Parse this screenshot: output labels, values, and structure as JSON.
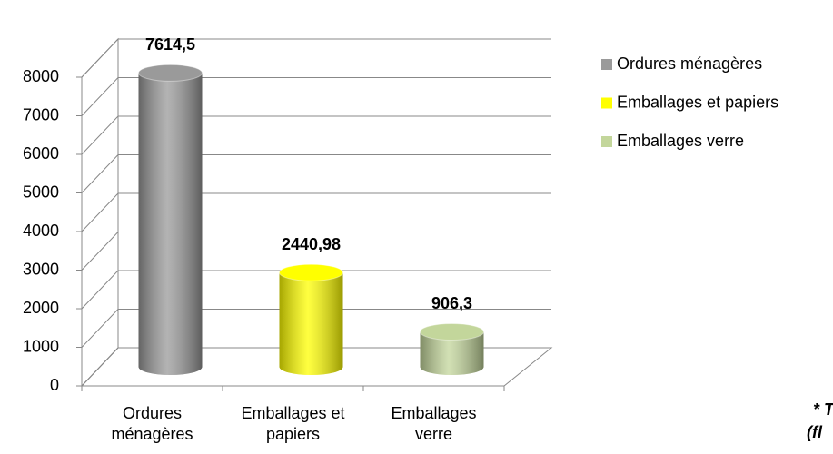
{
  "chart_data": {
    "type": "bar3d",
    "categories": [
      "Ordures ménagères",
      "Emballages et papiers",
      "Emballages verre"
    ],
    "values": [
      7614.5,
      2440.98,
      906.3
    ],
    "value_labels": [
      "7614,5",
      "2440,98",
      "906,3"
    ],
    "colors": [
      "#9a9a9a",
      "#ffff00",
      "#c3d69b"
    ],
    "ylim": [
      0,
      8000
    ],
    "yticks": [
      0,
      1000,
      2000,
      3000,
      4000,
      5000,
      6000,
      7000,
      8000
    ],
    "grid": true,
    "legend": "right",
    "annotations": [
      "* T",
      "(fl"
    ]
  }
}
